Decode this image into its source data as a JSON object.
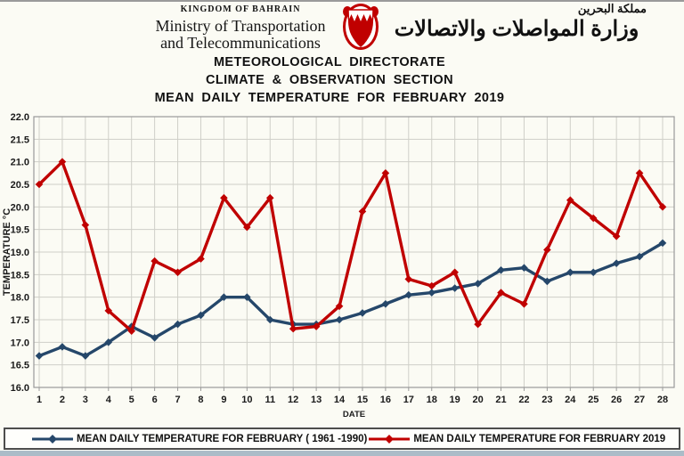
{
  "header": {
    "kingdom": "KINGDOM OF BAHRAIN",
    "ministry_line1": "Ministry of Transportation",
    "ministry_line2": "and Telecommunications",
    "arabic_small": "مملكة البحرين",
    "arabic_large": "وزارة المواصلات والاتصالات",
    "emblem_colors": {
      "red": "#C00000",
      "white": "#FFFFFF"
    }
  },
  "titles": {
    "line1": "METEOROLOGICAL DIRECTORATE",
    "line2": "CLIMATE & OBSERVATION SECTION",
    "line3": "MEAN DAILY TEMPERATURE FOR FEBRUARY 2019"
  },
  "chart_data": {
    "type": "line",
    "x": [
      1,
      2,
      3,
      4,
      5,
      6,
      7,
      8,
      9,
      10,
      11,
      12,
      13,
      14,
      15,
      16,
      17,
      18,
      19,
      20,
      21,
      22,
      23,
      24,
      25,
      26,
      27,
      28
    ],
    "xlabel": "DATE",
    "ylabel": "TEMPERATURE °C",
    "ylim": [
      16.0,
      22.0
    ],
    "ytick_step": 0.5,
    "grid": true,
    "legend_position": "bottom",
    "marker": "diamond",
    "series": [
      {
        "name": "MEAN DAILY TEMPERATURE FOR FEBRUARY ( 1961 -1990)",
        "color": "#25476A",
        "values": [
          16.7,
          16.9,
          16.7,
          17.0,
          17.35,
          17.1,
          17.4,
          17.6,
          18.0,
          18.0,
          17.5,
          17.4,
          17.4,
          17.5,
          17.65,
          17.85,
          18.05,
          18.1,
          18.2,
          18.3,
          18.6,
          18.65,
          18.35,
          18.55,
          18.55,
          18.75,
          18.9,
          19.2
        ]
      },
      {
        "name": "MEAN DAILY TEMPERATURE FOR FEBRUARY 2019",
        "color": "#C00000",
        "values": [
          20.5,
          21.0,
          19.6,
          17.7,
          17.25,
          18.8,
          18.55,
          18.85,
          20.2,
          19.55,
          20.2,
          17.3,
          17.35,
          17.8,
          19.9,
          20.75,
          18.4,
          18.25,
          18.55,
          17.4,
          18.1,
          17.85,
          19.05,
          20.15,
          19.75,
          19.35,
          20.75,
          20.0
        ]
      }
    ],
    "grid_color": "#CFCFC8",
    "border_color": "#9a9a9a"
  }
}
